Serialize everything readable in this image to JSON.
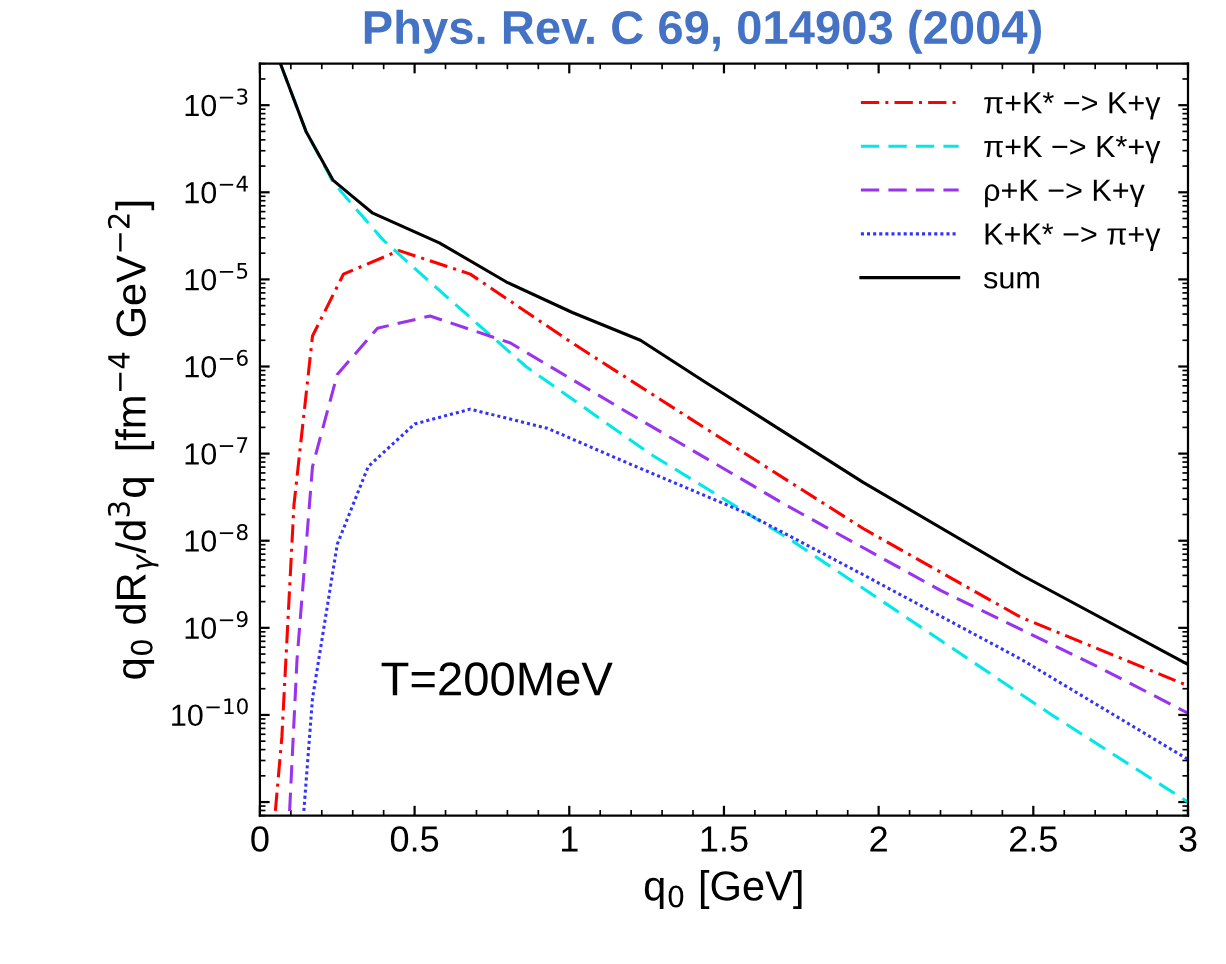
{
  "chart_data": {
    "type": "line",
    "xlabel": "q$_{0}$ [GeV]",
    "ylabel": "q$_{0}$ dR$_{γ}$/d$^{3}$q  [fm$^{−4}$ GeV$^{−2}$]",
    "annotations": [
      "Phys. Rev. C 69, 014903 (2004)",
      "T=200MeV"
    ],
    "log": "y",
    "grid": false,
    "legend": "top right",
    "marker": "none",
    "xlim": [
      0,
      3
    ],
    "xticks": [
      0,
      0.5,
      1,
      1.5,
      2,
      2.5,
      3
    ],
    "ylim": [
      7e-12,
      0.003
    ],
    "yticks": [
      {
        "value": 0.001,
        "label": "10$^{−3}$"
      },
      {
        "value": 0.0001,
        "label": "10$^{−4}$"
      },
      {
        "value": 1e-05,
        "label": "10$^{−5}$"
      },
      {
        "value": 1e-06,
        "label": "10$^{−6}$"
      },
      {
        "value": 1e-07,
        "label": "10$^{−7}$"
      },
      {
        "value": 1e-08,
        "label": "10$^{−8}$"
      },
      {
        "value": 1e-09,
        "label": "10$^{−9}$"
      },
      {
        "value": 1e-10,
        "label": "10$^{−10}$"
      },
      {
        "value": 1e-11,
        "label": null
      }
    ],
    "series": [
      {
        "name": "π+K* −> K+γ",
        "color": "#ff0000",
        "line_style": "dashdot",
        "x": [
          0.05,
          0.071,
          0.11,
          0.17,
          0.27,
          0.45,
          0.68,
          1.01,
          1.44,
          1.95,
          2.46,
          2.99
        ],
        "values": [
          7.9e-12,
          5.6e-11,
          2.57e-08,
          2.24e-06,
          1.15e-05,
          2.14e-05,
          1.15e-05,
          1.86e-06,
          1.95e-07,
          1.38e-08,
          1.32e-09,
          2.24e-10
        ]
      },
      {
        "name": "π+K −> K*+γ",
        "color": "#00e8e8",
        "line_style": "dashed",
        "x": [
          0.067,
          0.149,
          0.236,
          0.3,
          0.4,
          0.54,
          0.86,
          1.26,
          1.72,
          2.14,
          2.56,
          3.0
        ],
        "values": [
          0.00295,
          0.0005,
          0.000132,
          7.1e-05,
          2.8e-05,
          1e-05,
          1e-06,
          1e-07,
          1e-08,
          1e-09,
          1e-10,
          1e-11
        ]
      },
      {
        "name": "ρ+K −> K+γ",
        "color": "#9933ee",
        "line_style": "dashed",
        "x": [
          0.096,
          0.12,
          0.17,
          0.25,
          0.38,
          0.55,
          0.81,
          1.19,
          1.7,
          2.2,
          2.71,
          3.0
        ],
        "values": [
          7.9e-12,
          4.37e-10,
          7.1e-08,
          8.1e-07,
          2.75e-06,
          3.8e-06,
          1.86e-06,
          2.95e-07,
          2.57e-08,
          2.69e-09,
          3.55e-10,
          1.05e-10
        ]
      },
      {
        "name": "K+K* −> π+γ",
        "color": "#3333ff",
        "line_style": "dotted",
        "x": [
          0.142,
          0.17,
          0.25,
          0.35,
          0.5,
          0.68,
          0.93,
          1.19,
          1.57,
          1.95,
          2.46,
          3.0
        ],
        "values": [
          7.9e-12,
          1.55e-10,
          9.1e-09,
          7.1e-08,
          2.19e-07,
          3.24e-07,
          1.95e-07,
          7.76e-08,
          2.09e-08,
          4.07e-09,
          4.37e-10,
          3.09e-11
        ]
      },
      {
        "name": "sum",
        "color": "#000000",
        "line_style": "solid",
        "x": [
          0.067,
          0.149,
          0.236,
          0.3,
          0.365,
          0.58,
          0.797,
          1.01,
          1.23,
          1.44,
          1.95,
          2.46,
          3.0
        ],
        "values": [
          0.00295,
          0.0005,
          0.000138,
          8.9e-05,
          5.75e-05,
          2.63e-05,
          9.33e-06,
          4.17e-06,
          2e-06,
          6.6e-07,
          4.68e-08,
          4.07e-09,
          3.8e-10
        ]
      }
    ]
  }
}
